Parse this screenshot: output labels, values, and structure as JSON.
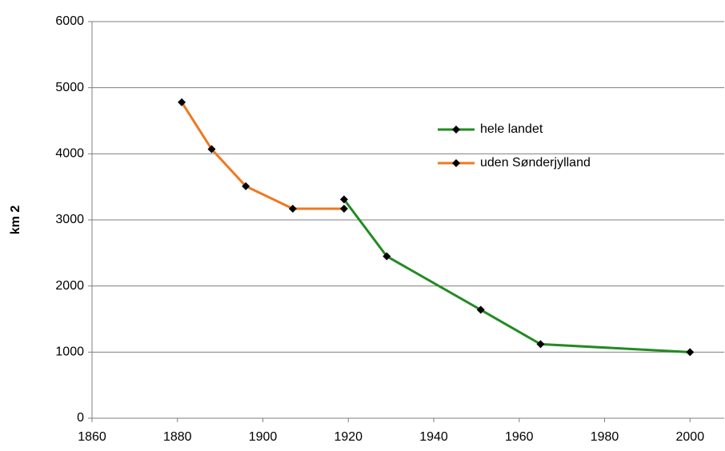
{
  "chart_data": {
    "type": "line",
    "ylabel": "km 2",
    "series": [
      {
        "name": "hele landet",
        "color": "#228B22",
        "x": [
          1919,
          1929,
          1951,
          1965,
          2000
        ],
        "values": [
          3310,
          2450,
          1640,
          1120,
          1000
        ]
      },
      {
        "name": "uden Sønderjylland",
        "color": "#F07820",
        "x": [
          1881,
          1888,
          1896,
          1907,
          1919
        ],
        "values": [
          4780,
          4070,
          3510,
          3170,
          3170
        ]
      }
    ],
    "xlim": [
      1860,
      2008
    ],
    "xticks": [
      1860,
      1880,
      1900,
      1920,
      1940,
      1960,
      1980,
      2000
    ],
    "ylim": [
      0,
      6000
    ],
    "yticks": [
      0,
      1000,
      2000,
      3000,
      4000,
      5000,
      6000
    ],
    "grid": true,
    "legend": "right"
  }
}
